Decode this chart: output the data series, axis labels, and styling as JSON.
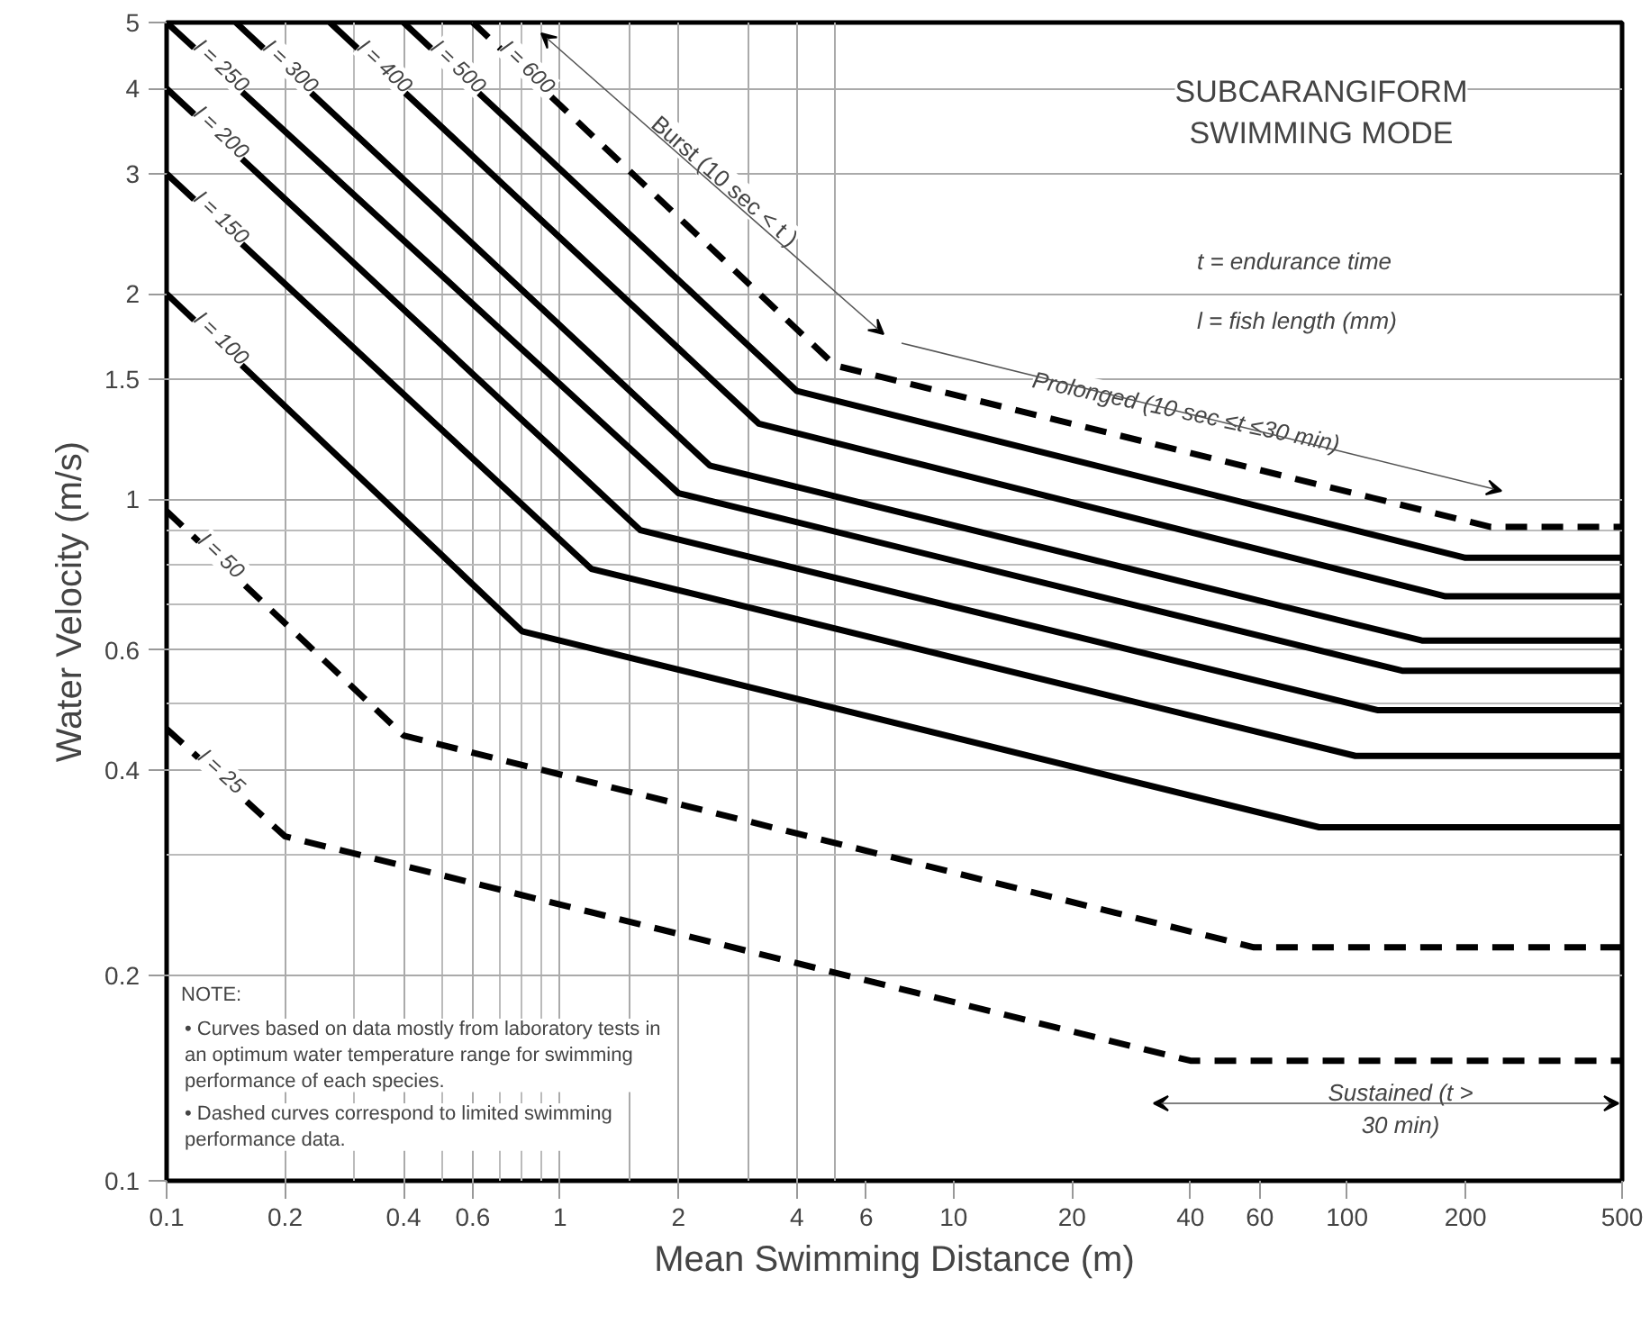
{
  "chart_data": {
    "type": "line",
    "title": "SUBCARANGIFORM SWIMMING MODE",
    "xlabel": "Mean Swimming Distance (m)",
    "ylabel": "Water Velocity (m/s)",
    "log": "xy",
    "grid": true,
    "xlim": [
      0.1,
      500
    ],
    "ylim": [
      0.1,
      5
    ],
    "xticks": [
      0.1,
      0.2,
      0.4,
      0.6,
      1,
      2,
      4,
      6,
      10,
      20,
      40,
      60,
      100,
      200,
      500
    ],
    "yticks": [
      0.1,
      0.2,
      0.4,
      0.6,
      1,
      1.5,
      2,
      3,
      4,
      5
    ],
    "series": [
      {
        "name": "l = 25",
        "color": "#000000",
        "line_style": "dashed",
        "x": [
          0.1,
          0.2,
          40,
          500
        ],
        "values": [
          0.46,
          0.32,
          0.15,
          0.15
        ]
      },
      {
        "name": "l = 50",
        "color": "#000000",
        "line_style": "dashed",
        "x": [
          0.1,
          0.4,
          58,
          500
        ],
        "values": [
          0.96,
          0.45,
          0.22,
          0.22
        ]
      },
      {
        "name": "l = 100",
        "color": "#000000",
        "line_style": "solid",
        "x": [
          0.1,
          0.8,
          85,
          500
        ],
        "values": [
          2.0,
          0.64,
          0.33,
          0.33
        ]
      },
      {
        "name": "l = 150",
        "color": "#000000",
        "line_style": "solid",
        "x": [
          0.1,
          1.2,
          105,
          500
        ],
        "values": [
          3.0,
          0.79,
          0.42,
          0.42
        ]
      },
      {
        "name": "l = 200",
        "color": "#000000",
        "line_style": "solid",
        "x": [
          0.1,
          1.6,
          120,
          500
        ],
        "values": [
          4.0,
          0.9,
          0.49,
          0.49
        ]
      },
      {
        "name": "l = 250",
        "color": "#000000",
        "line_style": "solid",
        "x": [
          0.1,
          2.0,
          138,
          500
        ],
        "values": [
          5.0,
          1.02,
          0.56,
          0.56
        ]
      },
      {
        "name": "l = 300",
        "color": "#000000",
        "line_style": "solid",
        "x": [
          0.15,
          2.4,
          155,
          500
        ],
        "values": [
          5.0,
          1.12,
          0.62,
          0.62
        ]
      },
      {
        "name": "l = 400",
        "color": "#000000",
        "line_style": "solid",
        "x": [
          0.26,
          3.2,
          178,
          500
        ],
        "values": [
          5.0,
          1.29,
          0.72,
          0.72
        ]
      },
      {
        "name": "l = 500",
        "color": "#000000",
        "line_style": "solid",
        "x": [
          0.4,
          4.0,
          200,
          500
        ],
        "values": [
          5.0,
          1.44,
          0.82,
          0.82
        ]
      },
      {
        "name": "l = 600",
        "color": "#000000",
        "line_style": "dashed",
        "x": [
          0.6,
          5.0,
          232,
          500
        ],
        "values": [
          5.0,
          1.57,
          0.91,
          0.91
        ]
      }
    ],
    "annotations": [
      "Burst (10 sec < t )",
      "Prolonged (10 sec ≤t ≤30 min)",
      "Sustained (t > 30 min)",
      "t = endurance time",
      "l = fish length (mm)",
      "NOTE:",
      "• Curves based on data mostly from laboratory tests in an optimum water temperature range for swimming performance of each species.",
      "• Dashed curves correspond to limited swimming performance data."
    ]
  }
}
